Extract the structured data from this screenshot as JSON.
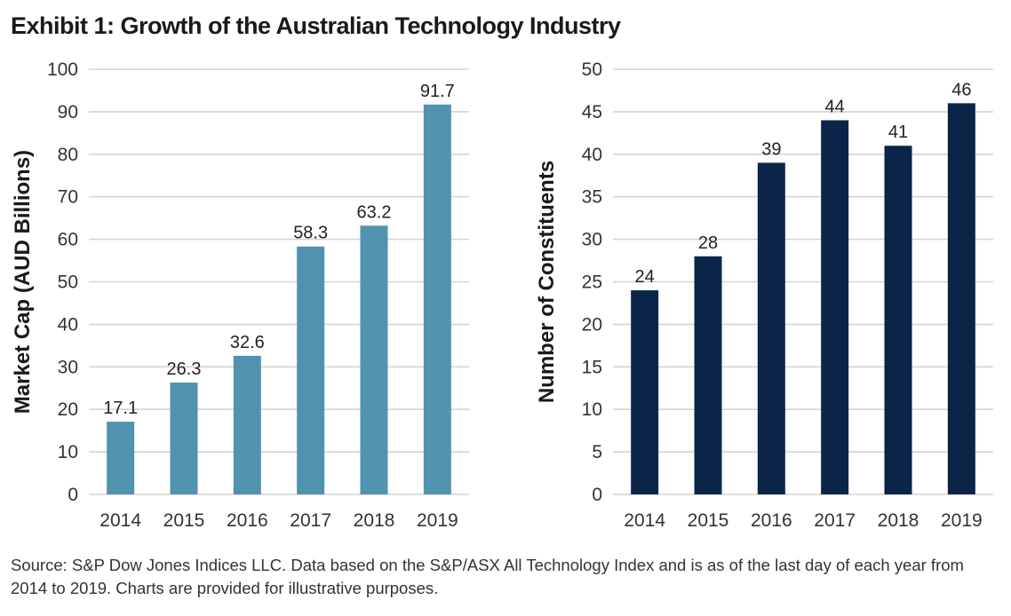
{
  "title": "Exhibit 1: Growth of the Australian Technology Industry",
  "source": "Source: S&P Dow Jones Indices LLC. Data based on the S&P/ASX All Technology Index and is as of the last day of each year from 2014 to 2019. Charts are provided for illustrative purposes.",
  "chart_data": [
    {
      "type": "bar",
      "title": "",
      "xlabel": "",
      "ylabel": "Market Cap (AUD Billions)",
      "categories": [
        "2014",
        "2015",
        "2016",
        "2017",
        "2018",
        "2019"
      ],
      "values": [
        17.1,
        26.3,
        32.6,
        58.3,
        63.2,
        91.7
      ],
      "data_labels": [
        "17.1",
        "26.3",
        "32.6",
        "58.3",
        "63.2",
        "91.7"
      ],
      "ylim": [
        0,
        100
      ],
      "yticks": [
        0,
        10,
        20,
        30,
        40,
        50,
        60,
        70,
        80,
        90,
        100
      ],
      "grid": true,
      "legend": "none",
      "bar_color": "#5192B0"
    },
    {
      "type": "bar",
      "title": "",
      "xlabel": "",
      "ylabel": "Number of Constituents",
      "categories": [
        "2014",
        "2015",
        "2016",
        "2017",
        "2018",
        "2019"
      ],
      "values": [
        24,
        28,
        39,
        44,
        41,
        46
      ],
      "data_labels": [
        "24",
        "28",
        "39",
        "44",
        "41",
        "46"
      ],
      "ylim": [
        0,
        50
      ],
      "yticks": [
        0,
        5,
        10,
        15,
        20,
        25,
        30,
        35,
        40,
        45,
        50
      ],
      "grid": true,
      "legend": "none",
      "bar_color": "#0B2549"
    }
  ]
}
